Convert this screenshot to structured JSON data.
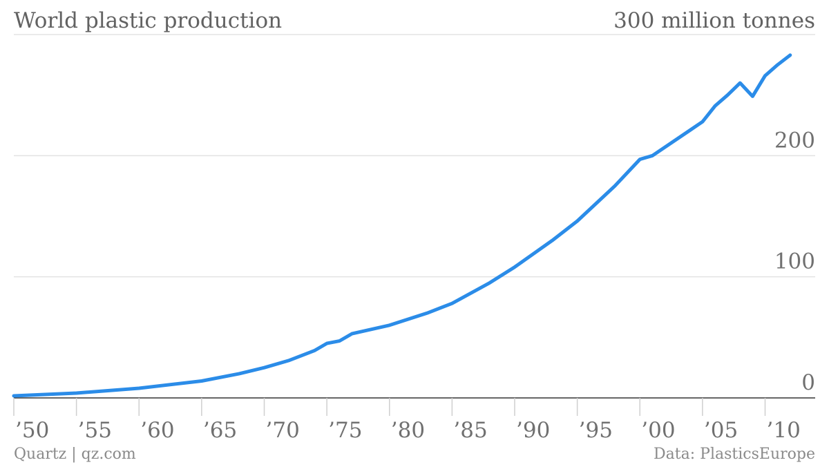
{
  "title": "World plastic production",
  "unit_label": "300 million tonnes",
  "source_left": "Quartz | qz.com",
  "source_right": "Data: PlasticsEurope",
  "colors": {
    "line": "#2b8ce8",
    "grid": "#e3e3e3",
    "axis": "#333333"
  },
  "chart_data": {
    "type": "line",
    "title": "World plastic production",
    "ylabel": "300 million tonnes",
    "xlim": [
      1950,
      2014
    ],
    "ylim": [
      0,
      300
    ],
    "y_ticks": [
      0,
      100,
      200
    ],
    "y_tick_labels": [
      "0",
      "100",
      "200"
    ],
    "y_top_label": "300 million tonnes",
    "x_ticks": [
      1950,
      1955,
      1960,
      1965,
      1970,
      1975,
      1980,
      1985,
      1990,
      1995,
      2000,
      2005,
      2010
    ],
    "x_tick_labels": [
      "’50",
      "’55",
      "’60",
      "’65",
      "’70",
      "’75",
      "’80",
      "’85",
      "’90",
      "’95",
      "’00",
      "’05",
      "’10"
    ],
    "grid": true,
    "series": [
      {
        "values": [
          [
            1950,
            1.7
          ],
          [
            1955,
            4
          ],
          [
            1960,
            8
          ],
          [
            1965,
            14
          ],
          [
            1968,
            20
          ],
          [
            1970,
            25
          ],
          [
            1972,
            31
          ],
          [
            1974,
            39
          ],
          [
            1975,
            45
          ],
          [
            1976,
            47
          ],
          [
            1977,
            53
          ],
          [
            1980,
            60
          ],
          [
            1983,
            70
          ],
          [
            1985,
            78
          ],
          [
            1988,
            95
          ],
          [
            1990,
            108
          ],
          [
            1993,
            130
          ],
          [
            1995,
            146
          ],
          [
            1998,
            175
          ],
          [
            2000,
            197
          ],
          [
            2001,
            200
          ],
          [
            2002,
            207
          ],
          [
            2004,
            221
          ],
          [
            2005,
            228
          ],
          [
            2006,
            241
          ],
          [
            2007,
            250
          ],
          [
            2008,
            260
          ],
          [
            2009,
            249
          ],
          [
            2010,
            266
          ],
          [
            2011,
            275
          ],
          [
            2012,
            283
          ]
        ]
      }
    ]
  }
}
